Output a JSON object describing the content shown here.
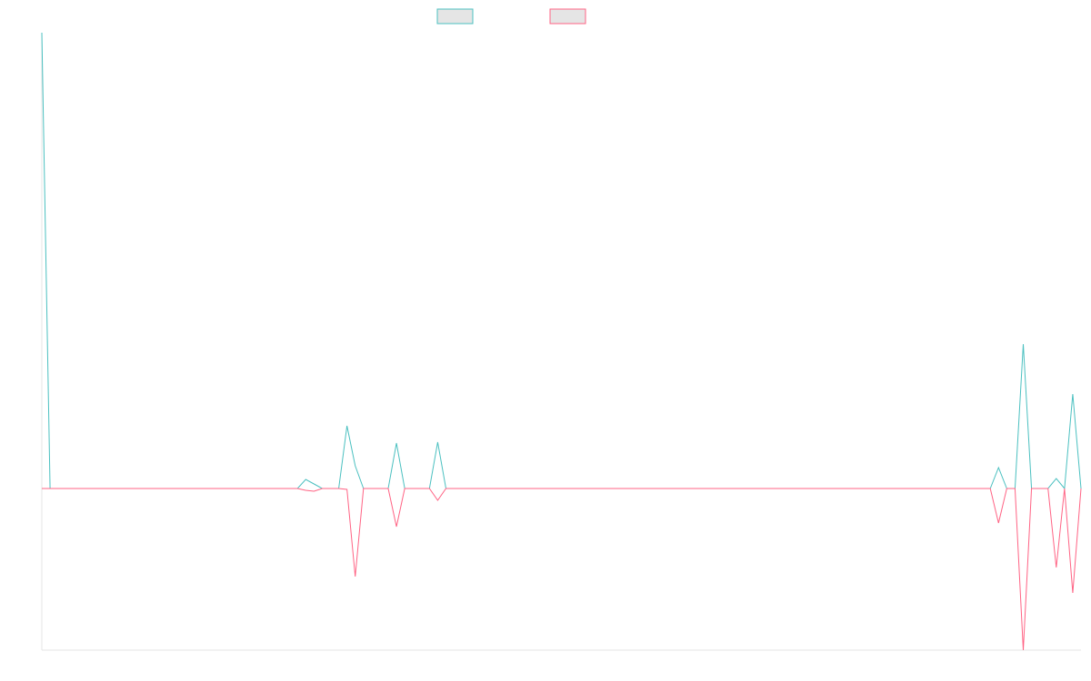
{
  "chart_data": {
    "type": "line",
    "series": [
      {
        "color": "#4bc0c0",
        "values": [
          50.2,
          0,
          0,
          0,
          0,
          0,
          0,
          0,
          0,
          0,
          0,
          0,
          0,
          0,
          0,
          0,
          0,
          0,
          0,
          0,
          0,
          0,
          0,
          0,
          0,
          0,
          0,
          0,
          0,
          0,
          0,
          0,
          1,
          0.5,
          0,
          0,
          0,
          6.9,
          2.5,
          0,
          0,
          0,
          0,
          5,
          0,
          0,
          0,
          0,
          5.1,
          0,
          0,
          0,
          0,
          0,
          0,
          0,
          0,
          0,
          0,
          0,
          0,
          0,
          0,
          0,
          0,
          0,
          0,
          0,
          0,
          0,
          0,
          0,
          0,
          0,
          0,
          0,
          0,
          0,
          0,
          0,
          0,
          0,
          0,
          0,
          0,
          0,
          0,
          0,
          0,
          0,
          0,
          0,
          0,
          0,
          0,
          0,
          0,
          0,
          0,
          0,
          0,
          0,
          0,
          0,
          0,
          0,
          0,
          0,
          0,
          0,
          0,
          0,
          0,
          0,
          0,
          0,
          2.3,
          0,
          0,
          15.9,
          0,
          0,
          0,
          1.1,
          0,
          10.4,
          0
        ]
      },
      {
        "color": "#ff6384",
        "values": [
          0,
          0,
          0,
          0,
          0,
          0,
          0,
          0,
          0,
          0,
          0,
          0,
          0,
          0,
          0,
          0,
          0,
          0,
          0,
          0,
          0,
          0,
          0,
          0,
          0,
          0,
          0,
          0,
          0,
          0,
          0,
          0,
          -0.2,
          -0.3,
          0,
          0,
          0,
          -0.1,
          -9.7,
          0,
          0,
          0,
          0,
          -4.2,
          0,
          0,
          0,
          0,
          -1.3,
          0,
          0,
          0,
          0,
          0,
          0,
          0,
          0,
          0,
          0,
          0,
          0,
          0,
          0,
          0,
          0,
          0,
          0,
          0,
          0,
          0,
          0,
          0,
          0,
          0,
          0,
          0,
          0,
          0,
          0,
          0,
          0,
          0,
          0,
          0,
          0,
          0,
          0,
          0,
          0,
          0,
          0,
          0,
          0,
          0,
          0,
          0,
          0,
          0,
          0,
          0,
          0,
          0,
          0,
          0,
          0,
          0,
          0,
          0,
          0,
          0,
          0,
          0,
          0,
          0,
          0,
          0,
          -3.8,
          0,
          0,
          -17.8,
          0,
          0,
          0,
          -8.7,
          0,
          -11.5,
          0
        ]
      }
    ],
    "ylim": [
      -17.8,
      50.2
    ]
  }
}
